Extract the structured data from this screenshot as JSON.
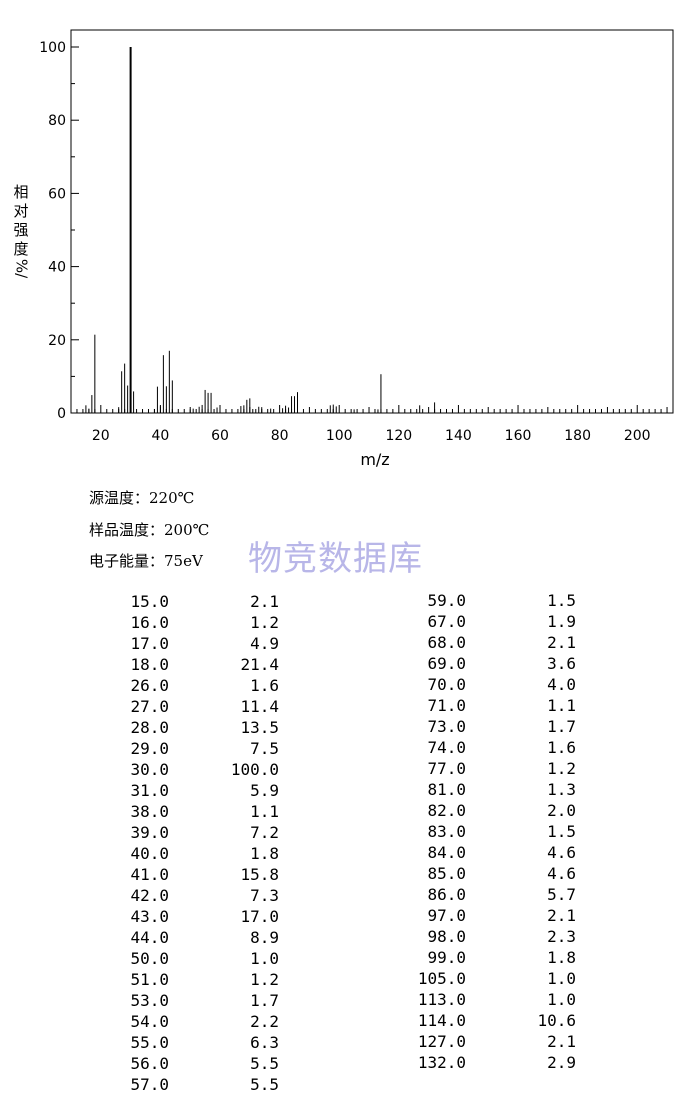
{
  "chart_data": {
    "type": "bar",
    "xlabel": "m/z",
    "ylabel_chars": [
      "相",
      "对",
      "强",
      "度"
    ],
    "ylabel_unit": "%/",
    "xlim": [
      10,
      212
    ],
    "ylim": [
      0,
      100
    ],
    "x_ticks": [
      20,
      40,
      60,
      80,
      100,
      120,
      140,
      160,
      180,
      200
    ],
    "y_ticks": [
      0,
      20,
      40,
      60,
      80,
      100
    ],
    "peaks": [
      [
        15,
        2.1
      ],
      [
        16,
        1.2
      ],
      [
        17,
        4.9
      ],
      [
        18,
        21.4
      ],
      [
        26,
        1.6
      ],
      [
        27,
        11.4
      ],
      [
        28,
        13.5
      ],
      [
        29,
        7.5
      ],
      [
        30,
        100.0
      ],
      [
        31,
        5.9
      ],
      [
        38,
        1.1
      ],
      [
        39,
        7.2
      ],
      [
        40,
        1.8
      ],
      [
        41,
        15.8
      ],
      [
        42,
        7.3
      ],
      [
        43,
        17.0
      ],
      [
        44,
        8.9
      ],
      [
        50,
        1.0
      ],
      [
        51,
        1.2
      ],
      [
        53,
        1.7
      ],
      [
        54,
        2.2
      ],
      [
        55,
        6.3
      ],
      [
        56,
        5.5
      ],
      [
        57,
        5.5
      ],
      [
        59,
        1.5
      ],
      [
        67,
        1.9
      ],
      [
        68,
        2.1
      ],
      [
        69,
        3.6
      ],
      [
        70,
        4.0
      ],
      [
        71,
        1.1
      ],
      [
        73,
        1.7
      ],
      [
        74,
        1.6
      ],
      [
        77,
        1.2
      ],
      [
        81,
        1.3
      ],
      [
        82,
        2.0
      ],
      [
        83,
        1.5
      ],
      [
        84,
        4.6
      ],
      [
        85,
        4.6
      ],
      [
        86,
        5.7
      ],
      [
        97,
        2.1
      ],
      [
        98,
        2.3
      ],
      [
        99,
        1.8
      ],
      [
        105,
        1.0
      ],
      [
        113,
        1.0
      ],
      [
        114,
        10.6
      ],
      [
        127,
        2.1
      ],
      [
        132,
        2.9
      ]
    ]
  },
  "conditions": {
    "source_temp": "源温度：220℃",
    "sample_temp": "样品温度：200℃",
    "electron_energy": "电子能量：75eV"
  },
  "watermark": "物竞数据库",
  "peak_table": {
    "left": [
      [
        "15.0",
        "2.1"
      ],
      [
        "16.0",
        "1.2"
      ],
      [
        "17.0",
        "4.9"
      ],
      [
        "18.0",
        "21.4"
      ],
      [
        "26.0",
        "1.6"
      ],
      [
        "27.0",
        "11.4"
      ],
      [
        "28.0",
        "13.5"
      ],
      [
        "29.0",
        "7.5"
      ],
      [
        "30.0",
        "100.0"
      ],
      [
        "31.0",
        "5.9"
      ],
      [
        "38.0",
        "1.1"
      ],
      [
        "39.0",
        "7.2"
      ],
      [
        "40.0",
        "1.8"
      ],
      [
        "41.0",
        "15.8"
      ],
      [
        "42.0",
        "7.3"
      ],
      [
        "43.0",
        "17.0"
      ],
      [
        "44.0",
        "8.9"
      ],
      [
        "50.0",
        "1.0"
      ],
      [
        "51.0",
        "1.2"
      ],
      [
        "53.0",
        "1.7"
      ],
      [
        "54.0",
        "2.2"
      ],
      [
        "55.0",
        "6.3"
      ],
      [
        "56.0",
        "5.5"
      ],
      [
        "57.0",
        "5.5"
      ]
    ],
    "right": [
      [
        "59.0",
        "1.5"
      ],
      [
        "67.0",
        "1.9"
      ],
      [
        "68.0",
        "2.1"
      ],
      [
        "69.0",
        "3.6"
      ],
      [
        "70.0",
        "4.0"
      ],
      [
        "71.0",
        "1.1"
      ],
      [
        "73.0",
        "1.7"
      ],
      [
        "74.0",
        "1.6"
      ],
      [
        "77.0",
        "1.2"
      ],
      [
        "81.0",
        "1.3"
      ],
      [
        "82.0",
        "2.0"
      ],
      [
        "83.0",
        "1.5"
      ],
      [
        "84.0",
        "4.6"
      ],
      [
        "85.0",
        "4.6"
      ],
      [
        "86.0",
        "5.7"
      ],
      [
        "97.0",
        "2.1"
      ],
      [
        "98.0",
        "2.3"
      ],
      [
        "99.0",
        "1.8"
      ],
      [
        "105.0",
        "1.0"
      ],
      [
        "113.0",
        "1.0"
      ],
      [
        "114.0",
        "10.6"
      ],
      [
        "127.0",
        "2.1"
      ],
      [
        "132.0",
        "2.9"
      ]
    ]
  }
}
